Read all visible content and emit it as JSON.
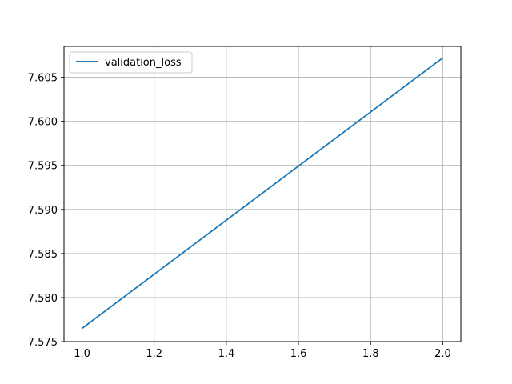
{
  "chart_data": {
    "type": "line",
    "x": [
      1.0,
      2.0
    ],
    "series": [
      {
        "name": "validation_loss",
        "color": "#1f77b4",
        "values": [
          7.5765,
          7.6072
        ]
      }
    ],
    "xlim": [
      0.95,
      2.05
    ],
    "ylim": [
      7.575,
      7.6085
    ],
    "xticks": [
      "1.0",
      "1.2",
      "1.4",
      "1.6",
      "1.8",
      "2.0"
    ],
    "yticks": [
      "7.575",
      "7.580",
      "7.585",
      "7.590",
      "7.595",
      "7.600",
      "7.605"
    ],
    "grid": true,
    "legend_position": "upper-left",
    "title": "",
    "xlabel": "",
    "ylabel": ""
  }
}
